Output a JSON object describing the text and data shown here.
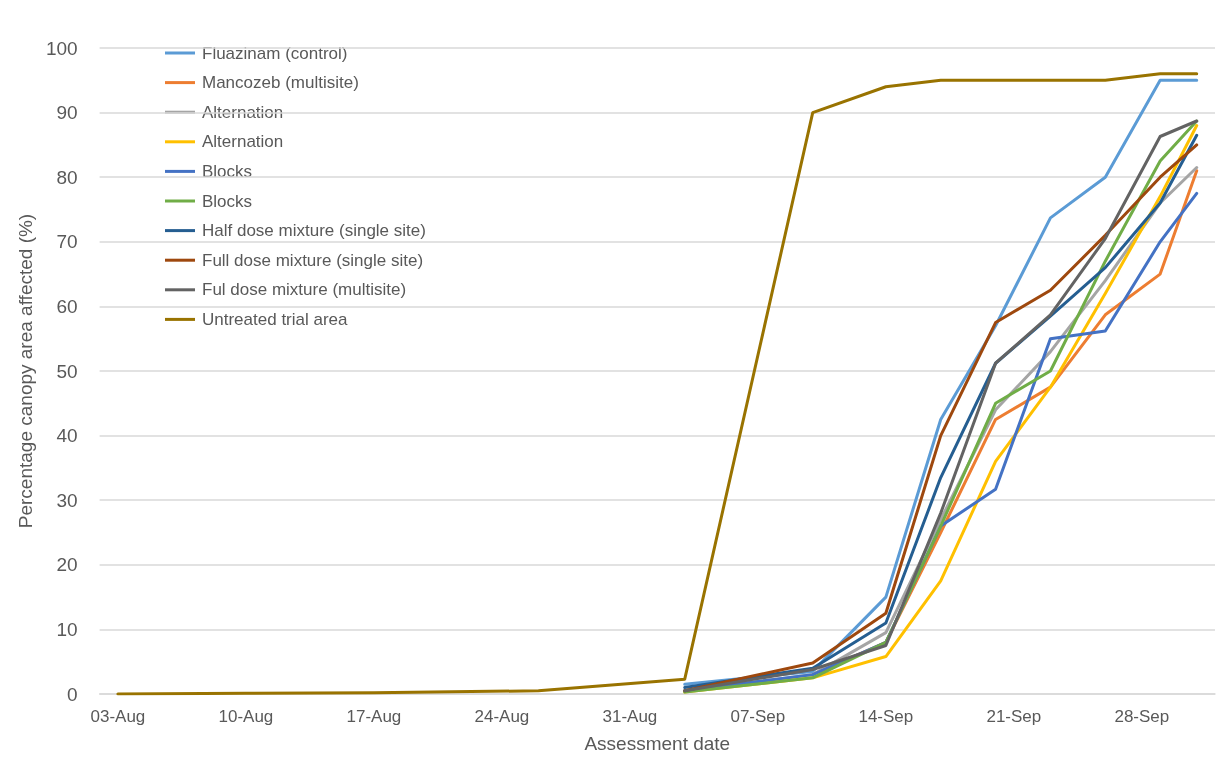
{
  "chart_data": {
    "type": "line",
    "xlabel": "Assessment date",
    "ylabel": "Percentage canopy area affected (%)",
    "x": [
      "--08-03",
      "--08-10",
      "--08-17",
      "--08-26",
      "--09-03",
      "--09-10",
      "--09-14",
      "--09-17",
      "--09-20",
      "--09-23",
      "--09-26",
      "--09-29",
      "--10-01"
    ],
    "xlim": [
      "--08-02",
      "--10-02"
    ],
    "xticks": [
      {
        "value": "--08-03",
        "label": "03-Aug"
      },
      {
        "value": "--08-10",
        "label": "10-Aug"
      },
      {
        "value": "--08-17",
        "label": "17-Aug"
      },
      {
        "value": "--08-24",
        "label": "24-Aug"
      },
      {
        "value": "--08-31",
        "label": "31-Aug"
      },
      {
        "value": "--09-07",
        "label": "07-Sep"
      },
      {
        "value": "--09-14",
        "label": "14-Sep"
      },
      {
        "value": "--09-21",
        "label": "21-Sep"
      },
      {
        "value": "--09-28",
        "label": "28-Sep"
      }
    ],
    "ylim": [
      0,
      100
    ],
    "yticks": [
      0,
      10,
      20,
      30,
      40,
      50,
      60,
      70,
      80,
      90,
      100
    ],
    "grid": "y",
    "legend": "top left",
    "marker": "none",
    "line_style": "solid",
    "series": [
      {
        "name": "Fluazinam (control)",
        "color": "#5b9bd5",
        "values": [
          null,
          null,
          null,
          null,
          1.5,
          3.5,
          15,
          42.5,
          57,
          73.7,
          80,
          95,
          95
        ]
      },
      {
        "name": "Mancozeb (multisite)",
        "color": "#ed7d31",
        "values": [
          null,
          null,
          null,
          null,
          null,
          3,
          8,
          25,
          42.5,
          47.5,
          58.7,
          65,
          81
        ]
      },
      {
        "name": "Alternation",
        "color": "#a5a5a5",
        "values": [
          null,
          null,
          null,
          null,
          0.5,
          3,
          9.5,
          27,
          44,
          53,
          64,
          76,
          81.5
        ]
      },
      {
        "name": "Alternation",
        "color": "#ffc000",
        "values": [
          null,
          null,
          null,
          null,
          0.3,
          2.5,
          5.8,
          17.5,
          36,
          47.5,
          62,
          77,
          88
        ]
      },
      {
        "name": "Blocks",
        "color": "#4472c4",
        "values": [
          null,
          null,
          null,
          null,
          0.5,
          3,
          8,
          26,
          31.7,
          55,
          56.2,
          70,
          77.5
        ]
      },
      {
        "name": "Blocks",
        "color": "#70ad47",
        "values": [
          null,
          null,
          null,
          null,
          0.3,
          2.5,
          8,
          26,
          45,
          50,
          67,
          82.5,
          88.7
        ]
      },
      {
        "name": "Half dose mixture (single site)",
        "color": "#255e91",
        "values": [
          null,
          null,
          null,
          null,
          1,
          4,
          11,
          33.5,
          51.2,
          58.5,
          66,
          76,
          86.5
        ]
      },
      {
        "name": "Full dose mixture (single site)",
        "color": "#9e480e",
        "values": [
          null,
          null,
          null,
          null,
          0.5,
          4.8,
          12.5,
          40,
          57.5,
          62.5,
          71,
          80,
          85
        ]
      },
      {
        "name": "Ful dose mixture (multisite)",
        "color": "#636363",
        "values": [
          null,
          null,
          null,
          null,
          0.5,
          3.8,
          7.5,
          28,
          51.2,
          58.7,
          70.5,
          86.3,
          88.7
        ]
      },
      {
        "name": "Untreated trial area",
        "color": "#997300",
        "values": [
          0,
          0.1,
          0.2,
          0.5,
          2.3,
          90,
          94,
          95,
          95,
          95,
          95,
          96,
          96
        ]
      }
    ]
  }
}
